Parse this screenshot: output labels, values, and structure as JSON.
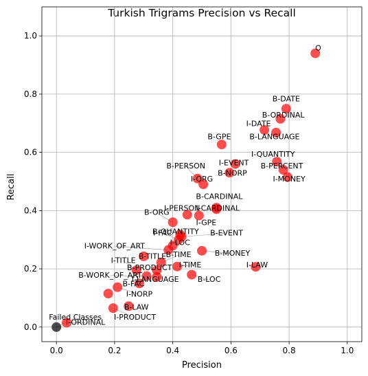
{
  "chart_data": {
    "type": "scatter",
    "title": "Turkish Trigrams Precision vs Recall",
    "xlabel": "Precision",
    "ylabel": "Recall",
    "xlim": [
      -0.05,
      1.05
    ],
    "ylim": [
      -0.05,
      1.05
    ],
    "xticks": [
      "0.0",
      "0.2",
      "0.4",
      "0.6",
      "0.8",
      "1.0"
    ],
    "yticks": [
      "0.0",
      "0.2",
      "0.4",
      "0.6",
      "0.8",
      "1.0"
    ],
    "grid": true,
    "colors": {
      "point": "#ff0000",
      "failed": "#000000",
      "grid": "#b0b0b0",
      "leader": "#999999"
    },
    "points": [
      {
        "label": "O",
        "x": 0.89,
        "y": 0.94,
        "lx": 0.9,
        "ly": 0.95
      },
      {
        "label": "B-DATE",
        "x": 0.79,
        "y": 0.75,
        "lx": 0.79,
        "ly": 0.775
      },
      {
        "label": "B-ORDINAL",
        "x": 0.77,
        "y": 0.715,
        "lx": 0.78,
        "ly": 0.72
      },
      {
        "label": "I-DATE",
        "x": 0.715,
        "y": 0.677,
        "lx": 0.695,
        "ly": 0.69
      },
      {
        "label": "B-LANGUAGE",
        "x": 0.755,
        "y": 0.668,
        "lx": 0.75,
        "ly": 0.645
      },
      {
        "label": "B-GPE",
        "x": 0.568,
        "y": 0.627,
        "lx": 0.56,
        "ly": 0.645
      },
      {
        "label": "I-QUANTITY",
        "x": 0.758,
        "y": 0.568,
        "lx": 0.745,
        "ly": 0.585
      },
      {
        "label": "I-EVENT",
        "x": 0.615,
        "y": 0.56,
        "lx": 0.61,
        "ly": 0.555
      },
      {
        "label": "B-PERCENT",
        "x": 0.78,
        "y": 0.54,
        "lx": 0.775,
        "ly": 0.545
      },
      {
        "label": "B-PERSON",
        "x": 0.485,
        "y": 0.51,
        "lx": 0.445,
        "ly": 0.545
      },
      {
        "label": "B-NORP",
        "x": 0.595,
        "y": 0.53,
        "lx": 0.605,
        "ly": 0.52
      },
      {
        "label": "I-MONEY",
        "x": 0.795,
        "y": 0.515,
        "lx": 0.8,
        "ly": 0.5
      },
      {
        "label": "I-ORG",
        "x": 0.505,
        "y": 0.49,
        "lx": 0.5,
        "ly": 0.5
      },
      {
        "label": "B-CARDINAL",
        "x": 0.55,
        "y": 0.41,
        "lx": 0.56,
        "ly": 0.44
      },
      {
        "label": "I-PERSON",
        "x": 0.45,
        "y": 0.386,
        "lx": 0.432,
        "ly": 0.4
      },
      {
        "label": "I-CARDINAL",
        "x": 0.55,
        "y": 0.405,
        "lx": 0.555,
        "ly": 0.4
      },
      {
        "label": "B-ORG",
        "x": 0.4,
        "y": 0.36,
        "lx": 0.345,
        "ly": 0.385
      },
      {
        "label": "I-GPE",
        "x": 0.49,
        "y": 0.383,
        "lx": 0.515,
        "ly": 0.35
      },
      {
        "label": "B-QUANTITY",
        "x": 0.425,
        "y": 0.318,
        "lx": 0.41,
        "ly": 0.32
      },
      {
        "label": "B-EVENT",
        "x": 0.43,
        "y": 0.31,
        "lx": 0.585,
        "ly": 0.315
      },
      {
        "label": "I-FAC",
        "x": 0.42,
        "y": 0.3,
        "lx": 0.365,
        "ly": 0.315
      },
      {
        "label": "I-LOC",
        "x": 0.4,
        "y": 0.28,
        "lx": 0.425,
        "ly": 0.282
      },
      {
        "label": "I-WORK_OF_ART",
        "x": 0.385,
        "y": 0.265,
        "lx": 0.2,
        "ly": 0.27
      },
      {
        "label": "B-MONEY",
        "x": 0.5,
        "y": 0.262,
        "lx": 0.605,
        "ly": 0.245
      },
      {
        "label": "B-TIME",
        "x": 0.36,
        "y": 0.222,
        "lx": 0.42,
        "ly": 0.24
      },
      {
        "label": "B-TITLE",
        "x": 0.3,
        "y": 0.243,
        "lx": 0.33,
        "ly": 0.235
      },
      {
        "label": "I-TITLE",
        "x": 0.275,
        "y": 0.195,
        "lx": 0.23,
        "ly": 0.22
      },
      {
        "label": "I-TIME",
        "x": 0.415,
        "y": 0.208,
        "lx": 0.46,
        "ly": 0.205
      },
      {
        "label": "B-PRODUCT",
        "x": 0.345,
        "y": 0.195,
        "lx": 0.32,
        "ly": 0.195
      },
      {
        "label": "I-LAW",
        "x": 0.685,
        "y": 0.207,
        "lx": 0.69,
        "ly": 0.205
      },
      {
        "label": "B-WORK_OF_ART",
        "x": 0.31,
        "y": 0.175,
        "lx": 0.185,
        "ly": 0.17
      },
      {
        "label": "I-LANGUAGE",
        "x": 0.345,
        "y": 0.172,
        "lx": 0.34,
        "ly": 0.155
      },
      {
        "label": "B-LOC",
        "x": 0.465,
        "y": 0.18,
        "lx": 0.525,
        "ly": 0.155
      },
      {
        "label": "B-FAC",
        "x": 0.285,
        "y": 0.15,
        "lx": 0.265,
        "ly": 0.14
      },
      {
        "label": "I-NORP",
        "x": 0.21,
        "y": 0.137,
        "lx": 0.285,
        "ly": 0.105
      },
      {
        "label": "B-PERCENT",
        "x": 0.178,
        "y": 0.115,
        "lx": 0.178,
        "ly": 0.115,
        "hidden_label": true
      },
      {
        "label": "B-LAW",
        "x": 0.248,
        "y": 0.072,
        "lx": 0.275,
        "ly": 0.06
      },
      {
        "label": "I-PRODUCT",
        "x": 0.195,
        "y": 0.065,
        "lx": 0.27,
        "ly": 0.025
      },
      {
        "label": "I-ORDINAL",
        "x": 0.035,
        "y": 0.015,
        "lx": 0.1,
        "ly": 0.008
      },
      {
        "label": "Failed Classes",
        "x": 0.0,
        "y": 0.0,
        "lx": 0.065,
        "ly": 0.025,
        "failed": true
      }
    ]
  }
}
